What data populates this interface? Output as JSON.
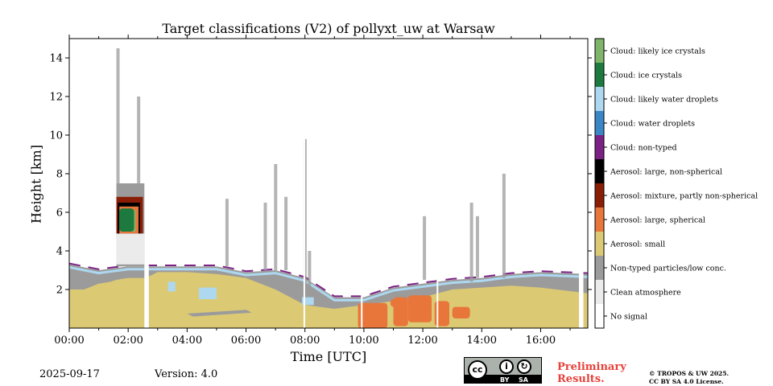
{
  "chart_data": {
    "type": "heatmap",
    "title": "Target classifications (V2) of pollyxt_uw at Warsaw",
    "xlabel": "Time [UTC]",
    "ylabel": "Height [km]",
    "xlim_hours": [
      0,
      17.6
    ],
    "ylim_km": [
      0,
      15
    ],
    "x_ticks": [
      {
        "value": 0,
        "label": "00:00"
      },
      {
        "value": 2,
        "label": "02:00"
      },
      {
        "value": 4,
        "label": "04:00"
      },
      {
        "value": 6,
        "label": "06:00"
      },
      {
        "value": 8,
        "label": "08:00"
      },
      {
        "value": 10,
        "label": "10:00"
      },
      {
        "value": 12,
        "label": "12:00"
      },
      {
        "value": 14,
        "label": "14:00"
      },
      {
        "value": 16,
        "label": "16:00"
      }
    ],
    "y_ticks": [
      {
        "value": 2,
        "label": "2"
      },
      {
        "value": 4,
        "label": "4"
      },
      {
        "value": 6,
        "label": "6"
      },
      {
        "value": 8,
        "label": "8"
      },
      {
        "value": 10,
        "label": "10"
      },
      {
        "value": 12,
        "label": "12"
      },
      {
        "value": 14,
        "label": "14"
      }
    ],
    "legend": {
      "position": "right",
      "classes": [
        {
          "label": "Cloud: likely ice crystals",
          "color": "#7fb56a"
        },
        {
          "label": "Cloud: ice crystals",
          "color": "#1c7a3e"
        },
        {
          "label": "Cloud: likely water droplets",
          "color": "#add8f0"
        },
        {
          "label": "Cloud: water droplets",
          "color": "#3b86c6"
        },
        {
          "label": "Cloud: non-typed",
          "color": "#7b2183"
        },
        {
          "label": "Aerosol: large, non-spherical",
          "color": "#000000"
        },
        {
          "label": "Aerosol: mixture, partly non-spherical",
          "color": "#8a1d05"
        },
        {
          "label": "Aerosol: large, spherical",
          "color": "#e8763a"
        },
        {
          "label": "Aerosol: small",
          "color": "#dcc974"
        },
        {
          "label": "Non-typed particles/low conc.",
          "color": "#9b9b9b"
        },
        {
          "label": "Clean atmosphere",
          "color": "#ebebeb"
        },
        {
          "label": "No signal",
          "color": "#ffffff"
        }
      ]
    },
    "regions": {
      "aerosol_small_top_km": [
        [
          0.0,
          2.0
        ],
        [
          0.5,
          2.0
        ],
        [
          1.0,
          2.3
        ],
        [
          1.4,
          2.4
        ],
        [
          1.6,
          2.5
        ],
        [
          2.0,
          2.6
        ],
        [
          2.6,
          2.6
        ],
        [
          3.0,
          2.9
        ],
        [
          4.0,
          2.9
        ],
        [
          5.0,
          2.8
        ],
        [
          6.0,
          2.6
        ],
        [
          7.0,
          2.0
        ],
        [
          8.0,
          1.2
        ],
        [
          9.0,
          1.0
        ],
        [
          10.0,
          1.2
        ],
        [
          11.0,
          1.4
        ],
        [
          12.0,
          1.6
        ],
        [
          13.0,
          2.0
        ],
        [
          14.0,
          2.1
        ],
        [
          15.0,
          2.2
        ],
        [
          16.0,
          2.1
        ],
        [
          17.6,
          1.8
        ]
      ],
      "boundary_layer_top_km": [
        [
          0.0,
          3.3
        ],
        [
          1.0,
          3.0
        ],
        [
          2.0,
          3.2
        ],
        [
          3.0,
          3.2
        ],
        [
          4.0,
          3.2
        ],
        [
          5.0,
          3.2
        ],
        [
          6.0,
          2.9
        ],
        [
          7.0,
          3.0
        ],
        [
          8.0,
          2.6
        ],
        [
          9.0,
          1.6
        ],
        [
          10.0,
          1.6
        ],
        [
          11.0,
          2.1
        ],
        [
          12.0,
          2.3
        ],
        [
          13.0,
          2.5
        ],
        [
          14.0,
          2.6
        ],
        [
          15.0,
          2.8
        ],
        [
          16.0,
          2.9
        ],
        [
          17.6,
          2.8
        ]
      ],
      "no_signal_gaps_hours": [
        [
          2.55,
          2.7
        ],
        [
          7.95,
          8.0
        ],
        [
          9.9,
          9.93
        ],
        [
          12.47,
          12.52
        ],
        [
          17.3,
          17.45
        ]
      ]
    },
    "features": {
      "cloud_ice_crystals": {
        "time_h": [
          1.7,
          2.2
        ],
        "height_km": [
          5.0,
          6.2
        ]
      },
      "elevated_aerosol_column": {
        "time_h": [
          1.6,
          2.6
        ],
        "height_km": [
          3.2,
          7.5
        ]
      },
      "large_spherical_aerosol_patches": {
        "time_h": [
          10.0,
          12.8
        ],
        "height_km": [
          0.0,
          1.8
        ]
      }
    },
    "grid": false
  },
  "footer": {
    "date": "2025-09-17",
    "version": "Version: 4.0",
    "preliminary_line1": "Preliminary",
    "preliminary_line2": "Results.",
    "copyright_line1": "© TROPOS & UW 2025.",
    "copyright_line2": "CC BY SA 4.0 License.",
    "license_badge": {
      "cc": "cc",
      "by": "BY",
      "sa": "SA"
    }
  }
}
